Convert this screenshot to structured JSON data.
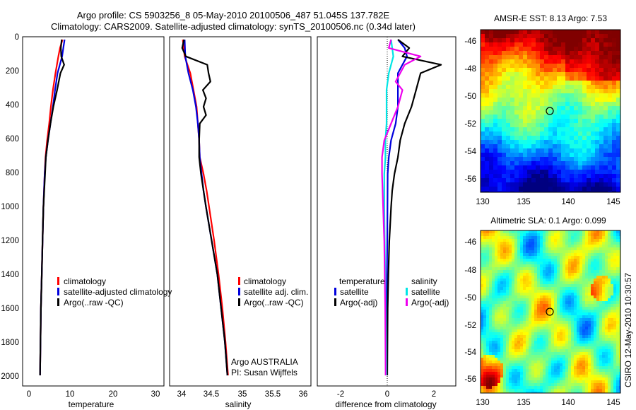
{
  "title_line1": "Argo profile: CS 5903256_8 05-May-2010 20100506_487 51.045S 137.782E",
  "title_line2": "Climatology: CARS2009. Satellite-adjusted climatology: synTS_20100506.nc (0.34d later)",
  "side_label": "CSIRO 12-May-2010 10:30:57",
  "colors": {
    "climatology": "#ff0000",
    "satellite": "#0000dd",
    "argo": "#000000",
    "satellite_salinity": "#00e5e5",
    "argo_salinity": "#ee00ee"
  },
  "chart_data": [
    {
      "type": "line",
      "name": "temperature-panel",
      "xlabel": "temperature",
      "ylabel": "",
      "xlim": [
        -2,
        32
      ],
      "ylim": [
        2050,
        0
      ],
      "xticks": [
        "0",
        "10",
        "20",
        "30"
      ],
      "yticks": [
        "0",
        "200",
        "400",
        "600",
        "800",
        "1000",
        "1200",
        "1400",
        "1600",
        "1800",
        "2000"
      ],
      "legend": [
        "climatology",
        "satellite-adjusted climatology",
        "Argo(..raw -QC)"
      ],
      "series": [
        {
          "name": "climatology",
          "color": "red",
          "depth": [
            0,
            50,
            100,
            200,
            300,
            400,
            500,
            600,
            700,
            800,
            1000,
            1200,
            1400,
            1600,
            1800,
            2000
          ],
          "values": [
            7.6,
            7.0,
            6.6,
            5.9,
            5.3,
            4.8,
            4.4,
            3.9,
            3.5,
            3.3,
            3.0,
            2.8,
            2.6,
            2.4,
            2.3,
            2.2
          ]
        },
        {
          "name": "satellite-adjusted climatology",
          "color": "blue",
          "depth": [
            0,
            50,
            100,
            200,
            300,
            400,
            500,
            600,
            700,
            800,
            1000,
            1200,
            1400,
            1600,
            1800,
            2000
          ],
          "values": [
            8.1,
            7.8,
            7.5,
            6.4,
            5.8,
            5.3,
            4.7,
            4.1,
            3.6,
            3.3,
            3.0,
            2.8,
            2.6,
            2.4,
            2.3,
            2.2
          ]
        },
        {
          "name": "Argo(..raw -QC)",
          "color": "black",
          "depth": [
            0,
            50,
            100,
            150,
            200,
            300,
            400,
            500,
            600,
            700,
            800,
            1000,
            1200,
            1400,
            1600,
            1800,
            2000
          ],
          "values": [
            7.4,
            7.2,
            7.3,
            8.0,
            7.1,
            6.3,
            5.4,
            4.7,
            4.1,
            3.6,
            3.4,
            3.0,
            2.8,
            2.6,
            2.4,
            2.3,
            2.2
          ]
        }
      ]
    },
    {
      "type": "line",
      "name": "salinity-panel",
      "xlabel": "salinity",
      "ylabel": "",
      "xlim": [
        33.8,
        36.05
      ],
      "ylim": [
        2050,
        0
      ],
      "xticks": [
        "34",
        "34.5",
        "35",
        "35.5",
        "36"
      ],
      "legend": [
        "climatology",
        "satellite adj. clim.",
        "Argo(..raw -QC)"
      ],
      "annotation": [
        "Argo AUSTRALIA",
        "PI: Susan Wijffels"
      ],
      "series": [
        {
          "name": "climatology",
          "color": "red",
          "depth": [
            0,
            100,
            200,
            300,
            400,
            500,
            600,
            700,
            800,
            900,
            1000,
            1200,
            1400,
            1600,
            1800,
            2000
          ],
          "values": [
            34.01,
            34.04,
            34.13,
            34.18,
            34.23,
            34.25,
            34.27,
            34.28,
            34.34,
            34.39,
            34.43,
            34.51,
            34.58,
            34.64,
            34.69,
            34.73
          ]
        },
        {
          "name": "satellite adj. clim.",
          "color": "blue",
          "depth": [
            0,
            100,
            200,
            300,
            400,
            500,
            600,
            700,
            800,
            900,
            1000,
            1200,
            1400,
            1600,
            1800,
            2000
          ],
          "values": [
            34.04,
            34.05,
            34.1,
            34.17,
            34.22,
            34.25,
            34.27,
            34.28,
            34.31,
            34.34,
            34.38,
            34.47,
            34.56,
            34.62,
            34.68,
            34.72
          ]
        },
        {
          "name": "Argo(..raw -QC)",
          "color": "black",
          "depth": [
            0,
            50,
            100,
            150,
            200,
            250,
            300,
            350,
            400,
            450,
            500,
            600,
            700,
            800,
            1000,
            1200,
            1400,
            1600,
            1800,
            2000
          ],
          "values": [
            34.03,
            34.0,
            34.06,
            34.4,
            34.42,
            34.45,
            34.33,
            34.38,
            34.34,
            34.38,
            34.28,
            34.27,
            34.27,
            34.3,
            34.38,
            34.47,
            34.56,
            34.62,
            34.68,
            34.72
          ]
        }
      ]
    },
    {
      "type": "line",
      "name": "difference-panel",
      "xlabel": "difference from climatology",
      "ylabel": "",
      "xlim": [
        -3.05,
        3.05
      ],
      "ylim": [
        2050,
        0
      ],
      "xticks": [
        "-2",
        "0",
        "2"
      ],
      "legend": [
        "temperature",
        "satellite",
        "Argo(-adj)",
        "salinity",
        "satellite",
        "Argo(-adj)"
      ],
      "series": [
        {
          "name": "temperature satellite",
          "color": "blue",
          "depth": [
            0,
            50,
            100,
            200,
            300,
            400,
            500,
            600,
            700,
            800,
            1000,
            1200,
            1400,
            1600,
            1800,
            2000
          ],
          "values": [
            0.5,
            0.8,
            0.9,
            0.5,
            0.5,
            0.5,
            0.4,
            0.2,
            0.1,
            0.05,
            0.04,
            0.03,
            0.02,
            0.02,
            0.02,
            0.02
          ]
        },
        {
          "name": "temperature Argo(-adj)",
          "color": "black",
          "depth": [
            0,
            50,
            100,
            150,
            200,
            300,
            400,
            500,
            600,
            700,
            800,
            900,
            1000,
            1200,
            1400,
            1600,
            1800,
            2000
          ],
          "values": [
            0.5,
            1.0,
            0.7,
            2.4,
            1.5,
            1.3,
            1.1,
            0.8,
            0.6,
            0.5,
            0.35,
            0.25,
            0.2,
            0.12,
            0.08,
            0.05,
            0.04,
            0.03
          ]
        },
        {
          "name": "salinity satellite",
          "color": "cyan",
          "depth": [
            0,
            50,
            100,
            200,
            300,
            400,
            500,
            600,
            700,
            800,
            1000,
            1200,
            1400,
            1600,
            1800,
            2000
          ],
          "values": [
            0.2,
            0.25,
            0.3,
            0.1,
            0.0,
            0.0,
            0.0,
            -0.05,
            -0.05,
            -0.1,
            -0.1,
            -0.08,
            -0.06,
            -0.04,
            -0.02,
            -0.01
          ]
        },
        {
          "name": "salinity Argo(-adj)",
          "color": "magenta",
          "depth": [
            0,
            50,
            100,
            150,
            200,
            250,
            300,
            400,
            500,
            600,
            700,
            800,
            1000,
            1200,
            1400,
            1600,
            1800,
            2000
          ],
          "values": [
            0.2,
            0.1,
            1.5,
            0.8,
            0.6,
            0.4,
            0.7,
            0.5,
            0.2,
            -0.1,
            -0.2,
            -0.2,
            -0.15,
            -0.1,
            -0.08,
            -0.06,
            -0.05,
            -0.04
          ]
        }
      ]
    },
    {
      "type": "heatmap",
      "name": "sst-map",
      "title": "AMSR-E SST: 8.13 Argo: 7.53",
      "xlim": [
        130,
        145.5
      ],
      "ylim": [
        -57,
        -45
      ],
      "xticks": [
        "130",
        "135",
        "140",
        "145"
      ],
      "yticks": [
        "-46",
        "-48",
        "-50",
        "-52",
        "-54",
        "-56"
      ],
      "marker": {
        "lon": 137.782,
        "lat": -51.045
      }
    },
    {
      "type": "heatmap",
      "name": "sla-map",
      "title": "Altimetric SLA: 0.1 Argo: 0.099",
      "xlim": [
        130,
        145.5
      ],
      "ylim": [
        -57,
        -45
      ],
      "xticks": [
        "130",
        "135",
        "140",
        "145"
      ],
      "yticks": [
        "-46",
        "-48",
        "-50",
        "-52",
        "-54",
        "-56"
      ],
      "marker": {
        "lon": 137.782,
        "lat": -51.045
      }
    }
  ]
}
